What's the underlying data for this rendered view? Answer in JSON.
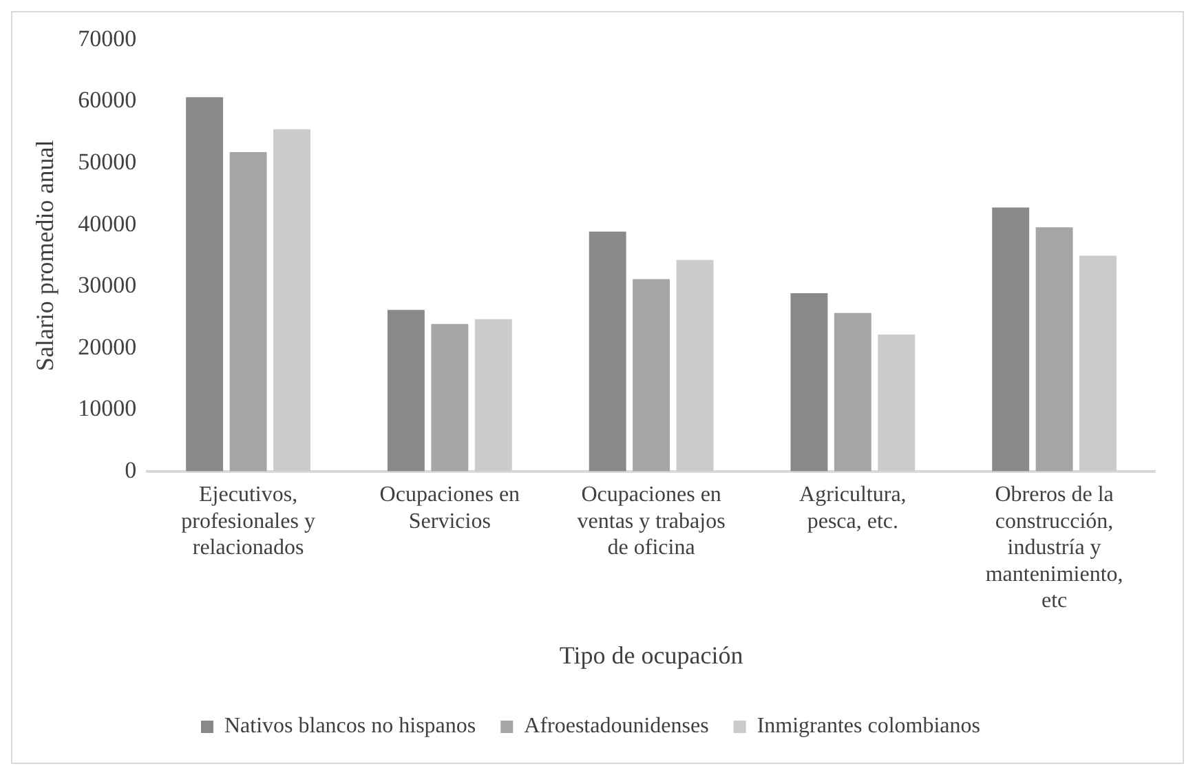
{
  "chart_data": {
    "type": "bar",
    "xlabel": "Tipo de ocupación",
    "ylabel": "Salario promedio anual",
    "categories": [
      "Ejecutivos, profesionales y relacionados",
      "Ocupaciones en Servicios",
      "Ocupaciones en ventas y trabajos de oficina",
      "Agricultura, pesca, etc.",
      "Obreros de la construcción, industría y mantenimiento, etc"
    ],
    "series": [
      {
        "name": "Nativos blancos no hispanos",
        "color": "#898989",
        "values": [
          60700,
          26200,
          38900,
          28900,
          42800
        ]
      },
      {
        "name": "Afroestadounidenses",
        "color": "#a5a5a5",
        "values": [
          51800,
          23900,
          31200,
          25700,
          39600
        ]
      },
      {
        "name": "Inmigrantes colombianos",
        "color": "#cbcbcb",
        "values": [
          55500,
          24700,
          34300,
          22200,
          35000
        ]
      }
    ],
    "ylim": [
      0,
      70000
    ],
    "yticks": [
      0,
      10000,
      20000,
      30000,
      40000,
      50000,
      60000,
      70000
    ],
    "grid": false,
    "legend": "bottom"
  }
}
